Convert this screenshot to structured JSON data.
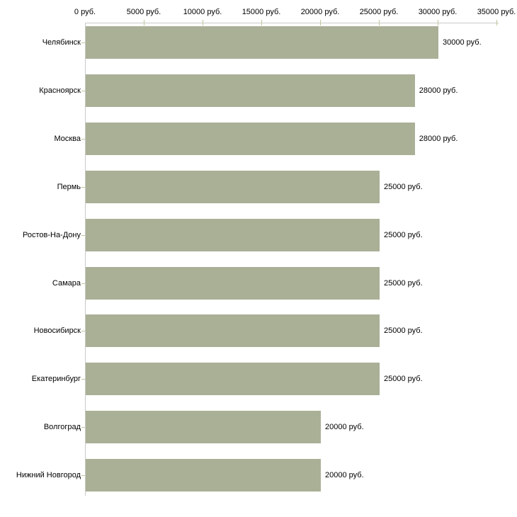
{
  "chart_data": {
    "type": "bar",
    "orientation": "horizontal",
    "title": "",
    "xlabel": "",
    "ylabel": "",
    "unit": "руб.",
    "categories": [
      "Челябинск",
      "Красноярск",
      "Москва",
      "Пермь",
      "Ростов-На-Дону",
      "Самара",
      "Новосибирск",
      "Екатеринбург",
      "Волгоград",
      "Нижний Новгород"
    ],
    "values": [
      30000,
      28000,
      28000,
      25000,
      25000,
      25000,
      25000,
      25000,
      20000,
      20000
    ],
    "value_labels": [
      "30000 руб.",
      "28000 руб.",
      "28000 руб.",
      "25000 руб.",
      "25000 руб.",
      "25000 руб.",
      "25000 руб.",
      "25000 руб.",
      "20000 руб.",
      "20000 руб."
    ],
    "x_ticks": [
      0,
      5000,
      10000,
      15000,
      20000,
      25000,
      30000,
      35000
    ],
    "x_tick_labels": [
      "0 руб.",
      "5000 руб.",
      "10000 руб.",
      "15000 руб.",
      "20000 руб.",
      "25000 руб.",
      "30000 руб.",
      "35000 руб."
    ],
    "xlim": [
      0,
      35000
    ],
    "axis_position": "top",
    "grid": false,
    "legend": false,
    "bar_color": "#a9b096",
    "axis_line_color": "#c9c9c9",
    "tick_mark_color": "#c2c69d",
    "text_color": "#000000",
    "background_color": "#ffffff"
  }
}
